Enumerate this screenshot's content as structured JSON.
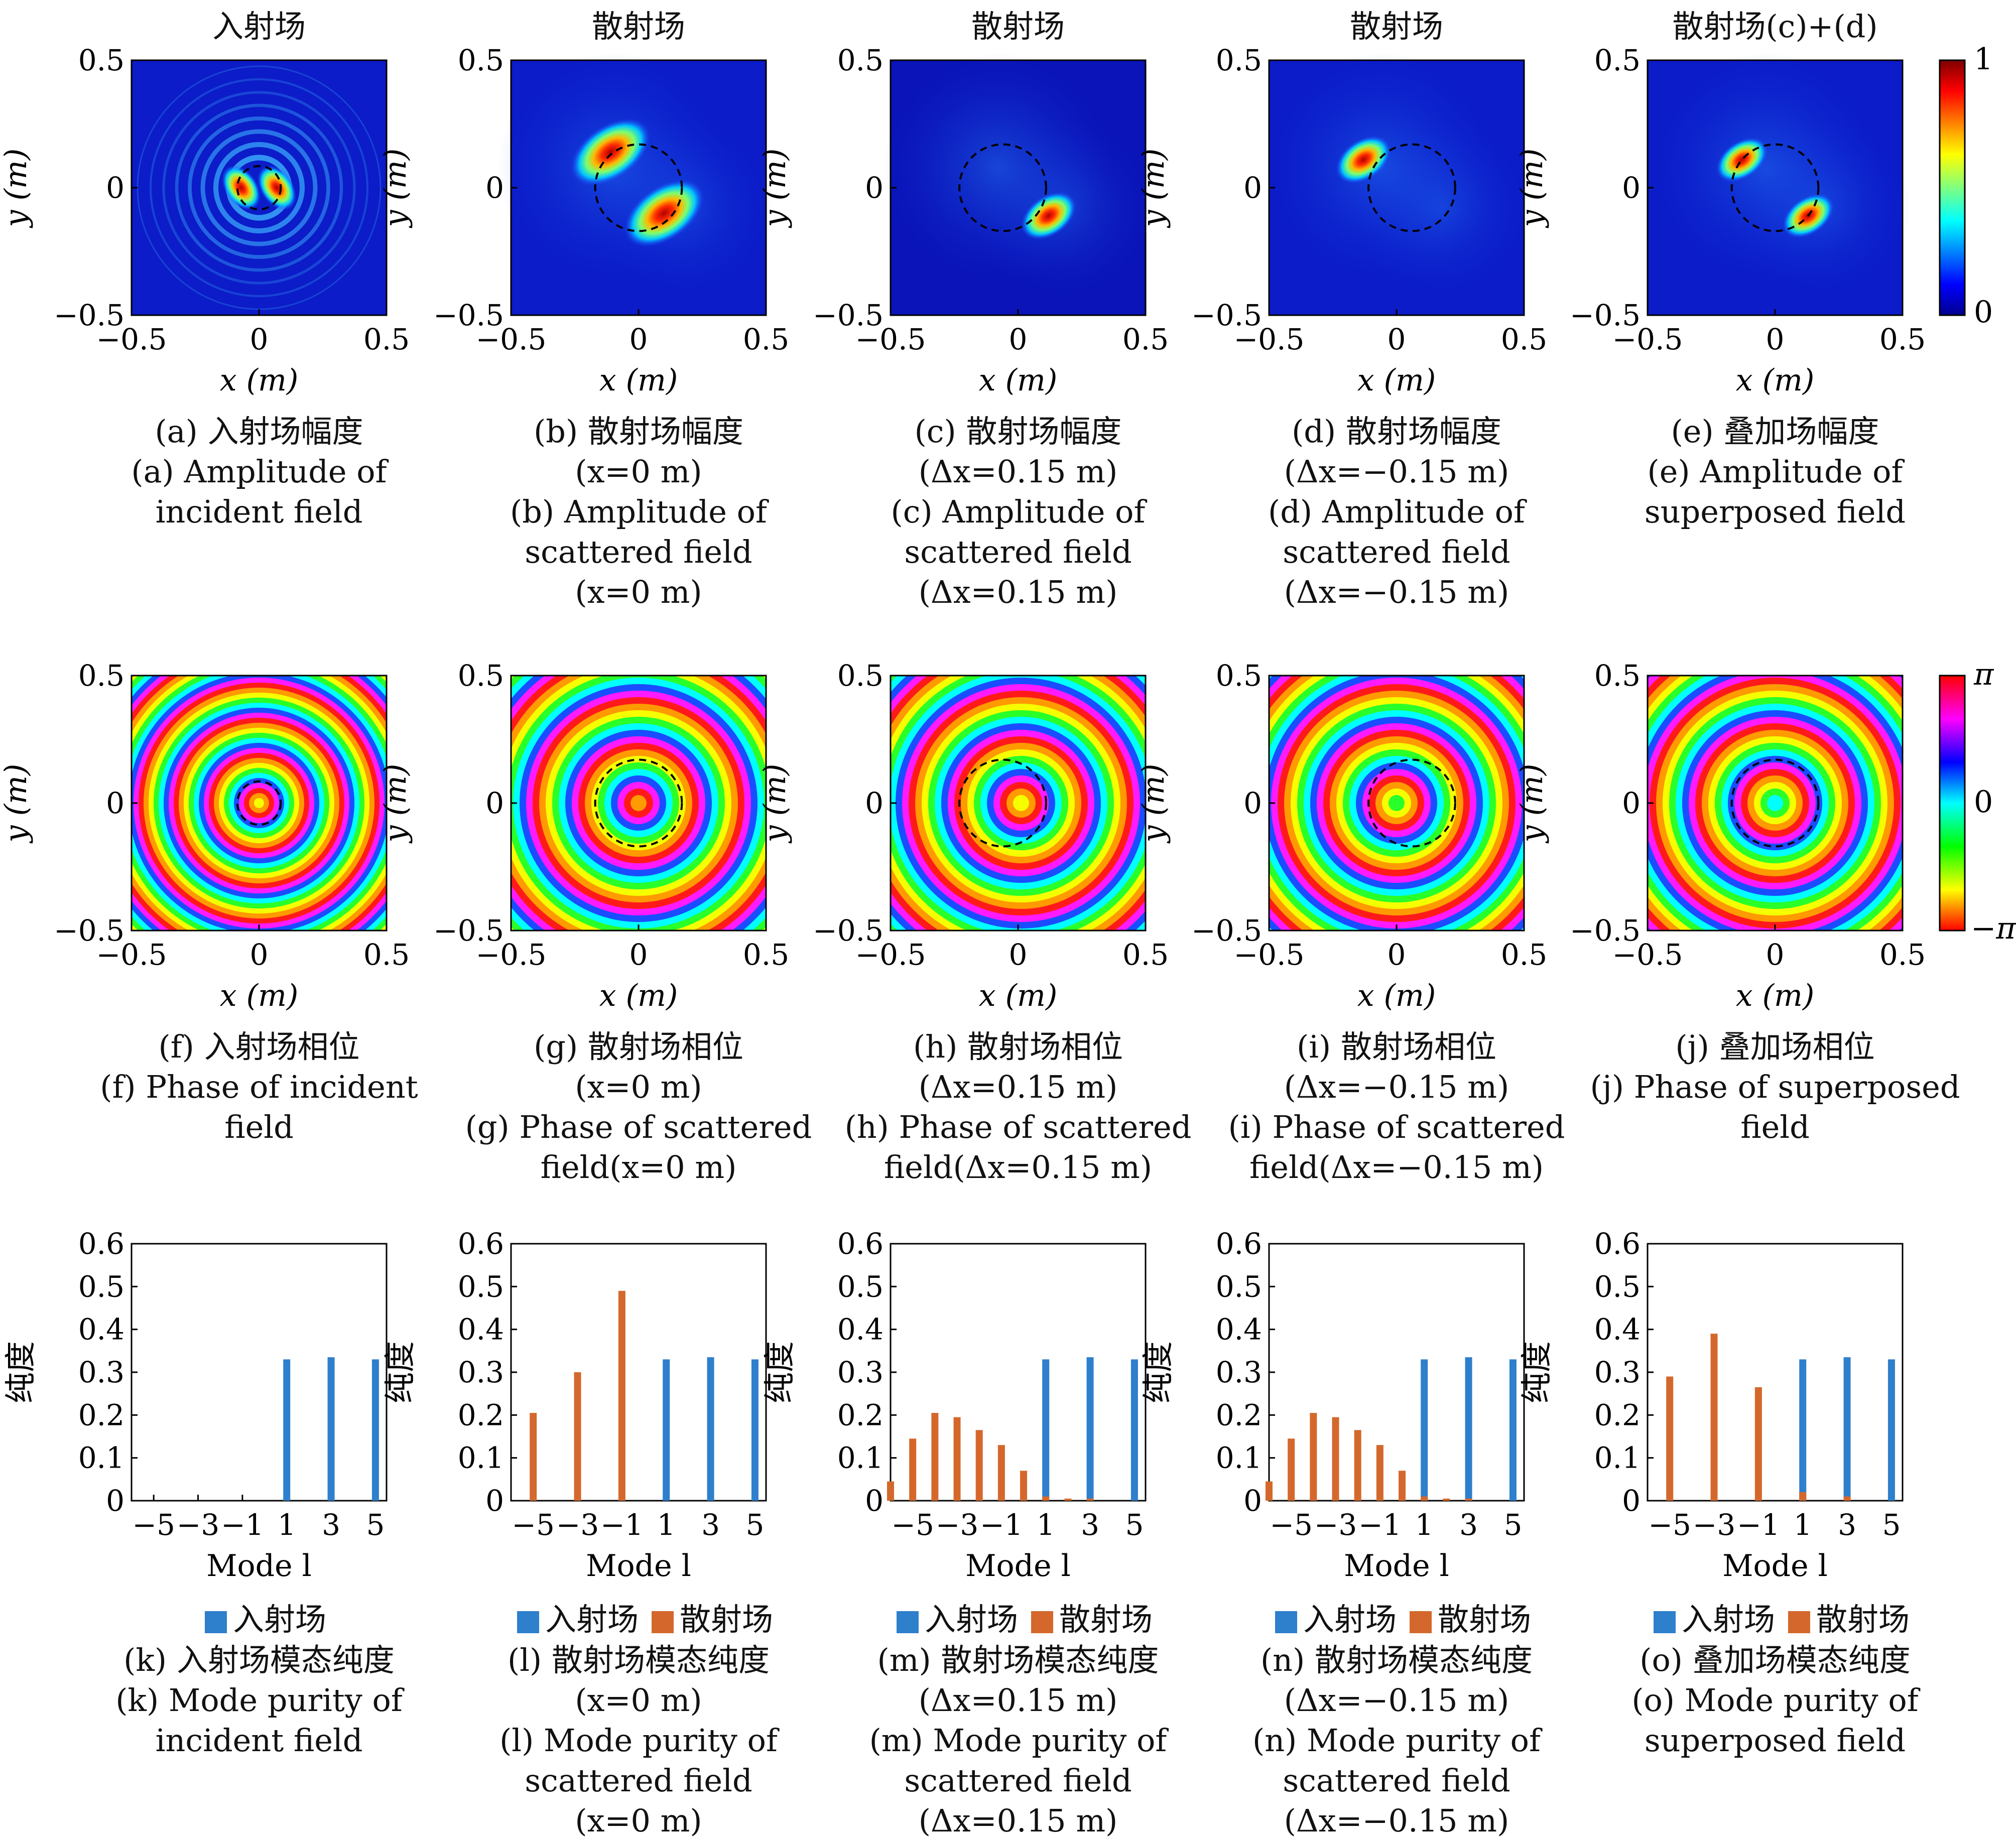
{
  "column_titles": [
    "入射场",
    "散射场",
    "散射场",
    "散射场",
    "散射场(c)+(d)"
  ],
  "colorbars": {
    "amplitude": {
      "max_label": "1",
      "min_label": "0"
    },
    "phase": {
      "max_label": "π",
      "mid_label": "0",
      "min_label": "−π"
    }
  },
  "field_axes": {
    "xlabel": "x (m)",
    "ylabel": "y (m)",
    "ticks": [
      "−0.5",
      "0",
      "0.5"
    ],
    "range": [
      -0.5,
      0.5
    ]
  },
  "amplitude_captions": [
    [
      "(a) 入射场幅度",
      "(a) Amplitude of",
      "incident field"
    ],
    [
      "(b) 散射场幅度",
      "(x=0 m)",
      "(b) Amplitude of",
      "scattered field",
      "(x=0 m)"
    ],
    [
      "(c) 散射场幅度",
      "(Δx=0.15 m)",
      "(c) Amplitude of",
      "scattered field",
      "(Δx=0.15 m)"
    ],
    [
      "(d) 散射场幅度",
      "(Δx=−0.15 m)",
      "(d) Amplitude of",
      "scattered field",
      "(Δx=−0.15 m)"
    ],
    [
      "(e) 叠加场幅度",
      "(e) Amplitude of",
      "superposed field"
    ]
  ],
  "phase_captions": [
    [
      "(f) 入射场相位",
      "(f) Phase of incident",
      "field"
    ],
    [
      "(g) 散射场相位",
      "(x=0 m)",
      "(g) Phase of scattered",
      "field(x=0 m)"
    ],
    [
      "(h) 散射场相位",
      "(Δx=0.15 m)",
      "(h) Phase of scattered",
      "field(Δx=0.15 m)"
    ],
    [
      "(i) 散射场相位",
      "(Δx=−0.15 m)",
      "(i) Phase of scattered",
      "field(Δx=−0.15 m)"
    ],
    [
      "(j) 叠加场相位",
      "(j) Phase of superposed",
      "field"
    ]
  ],
  "purity_captions": [
    [
      "(k) 入射场模态纯度",
      "(k) Mode purity of",
      "incident field"
    ],
    [
      "(l) 散射场模态纯度",
      "(x=0 m)",
      "(l) Mode purity of",
      "scattered field",
      "(x=0 m)"
    ],
    [
      "(m) 散射场模态纯度",
      "(Δx=0.15 m)",
      "(m) Mode purity of",
      "scattered field",
      "(Δx=0.15 m)"
    ],
    [
      "(n) 散射场模态纯度",
      "(Δx=−0.15 m)",
      "(n) Mode purity of",
      "scattered field",
      "(Δx=−0.15 m)"
    ],
    [
      "(o) 叠加场模态纯度",
      "(o) Mode purity of",
      "superposed field"
    ]
  ],
  "legend": {
    "incident": "入射场",
    "scattered": "散射场"
  },
  "colors": {
    "incident": "#2e7fcc",
    "scattered": "#d4682c"
  },
  "chart_data": [
    {
      "panel": "k",
      "type": "bar",
      "xlabel": "Mode l",
      "ylabel": "纯度",
      "ylim": [
        0,
        0.6
      ],
      "yticks": [
        "0",
        "0.1",
        "0.2",
        "0.3",
        "0.4",
        "0.5",
        "0.6"
      ],
      "xticks": [
        "−5",
        "−3",
        "−1",
        "1",
        "3",
        "5"
      ],
      "legend_entries": [
        "入射场"
      ],
      "modes": [
        -5,
        -4,
        -3,
        -2,
        -1,
        0,
        1,
        2,
        3,
        4,
        5
      ],
      "series": [
        {
          "name": "入射场",
          "values": [
            0,
            0,
            0,
            0,
            0,
            0,
            0.33,
            0,
            0.335,
            0,
            0.33
          ]
        }
      ]
    },
    {
      "panel": "l",
      "type": "bar",
      "xlabel": "Mode l",
      "ylabel": "纯度",
      "ylim": [
        0,
        0.6
      ],
      "yticks": [
        "0",
        "0.1",
        "0.2",
        "0.3",
        "0.4",
        "0.5",
        "0.6"
      ],
      "xticks": [
        "−5",
        "−3",
        "−1",
        "1",
        "3",
        "5"
      ],
      "legend_entries": [
        "入射场",
        "散射场"
      ],
      "modes": [
        -5,
        -4,
        -3,
        -2,
        -1,
        0,
        1,
        2,
        3,
        4,
        5
      ],
      "series": [
        {
          "name": "入射场",
          "values": [
            0,
            0,
            0,
            0,
            0,
            0,
            0.33,
            0,
            0.335,
            0,
            0.33
          ]
        },
        {
          "name": "散射场",
          "values": [
            0.205,
            0,
            0.3,
            0,
            0.49,
            0,
            0,
            0,
            0,
            0,
            0
          ]
        }
      ]
    },
    {
      "panel": "m",
      "type": "bar",
      "xlabel": "Mode l",
      "ylabel": "纯度",
      "ylim": [
        0,
        0.6
      ],
      "yticks": [
        "0",
        "0.1",
        "0.2",
        "0.3",
        "0.4",
        "0.5",
        "0.6"
      ],
      "xticks": [
        "−5",
        "−3",
        "−1",
        "1",
        "3",
        "5"
      ],
      "legend_entries": [
        "入射场",
        "散射场"
      ],
      "modes": [
        -6,
        -5,
        -4,
        -3,
        -2,
        -1,
        0,
        1,
        2,
        3,
        4,
        5
      ],
      "series": [
        {
          "name": "入射场",
          "values": [
            0,
            0,
            0,
            0,
            0,
            0,
            0,
            0.33,
            0,
            0.335,
            0,
            0.33
          ]
        },
        {
          "name": "散射场",
          "values": [
            0.045,
            0.145,
            0.205,
            0.195,
            0.165,
            0.13,
            0.07,
            0.01,
            0.005,
            0.005,
            0,
            0
          ]
        }
      ]
    },
    {
      "panel": "n",
      "type": "bar",
      "xlabel": "Mode l",
      "ylabel": "纯度",
      "ylim": [
        0,
        0.6
      ],
      "yticks": [
        "0",
        "0.1",
        "0.2",
        "0.3",
        "0.4",
        "0.5",
        "0.6"
      ],
      "xticks": [
        "−5",
        "−3",
        "−1",
        "1",
        "3",
        "5"
      ],
      "legend_entries": [
        "入射场",
        "散射场"
      ],
      "modes": [
        -6,
        -5,
        -4,
        -3,
        -2,
        -1,
        0,
        1,
        2,
        3,
        4,
        5
      ],
      "series": [
        {
          "name": "入射场",
          "values": [
            0,
            0,
            0,
            0,
            0,
            0,
            0,
            0.33,
            0,
            0.335,
            0,
            0.33
          ]
        },
        {
          "name": "散射场",
          "values": [
            0.045,
            0.145,
            0.205,
            0.195,
            0.165,
            0.13,
            0.07,
            0.01,
            0.005,
            0.005,
            0,
            0
          ]
        }
      ]
    },
    {
      "panel": "o",
      "type": "bar",
      "xlabel": "Mode l",
      "ylabel": "纯度",
      "ylim": [
        0,
        0.6
      ],
      "yticks": [
        "0",
        "0.1",
        "0.2",
        "0.3",
        "0.4",
        "0.5",
        "0.6"
      ],
      "xticks": [
        "−5",
        "−3",
        "−1",
        "1",
        "3",
        "5"
      ],
      "legend_entries": [
        "入射场",
        "散射场"
      ],
      "modes": [
        -5,
        -4,
        -3,
        -2,
        -1,
        0,
        1,
        2,
        3,
        4,
        5
      ],
      "series": [
        {
          "name": "入射场",
          "values": [
            0,
            0,
            0,
            0,
            0,
            0,
            0.33,
            0,
            0.335,
            0,
            0.33
          ]
        },
        {
          "name": "散射场",
          "values": [
            0.29,
            0,
            0.39,
            0,
            0.265,
            0,
            0.02,
            0,
            0.01,
            0,
            0
          ]
        }
      ]
    }
  ]
}
